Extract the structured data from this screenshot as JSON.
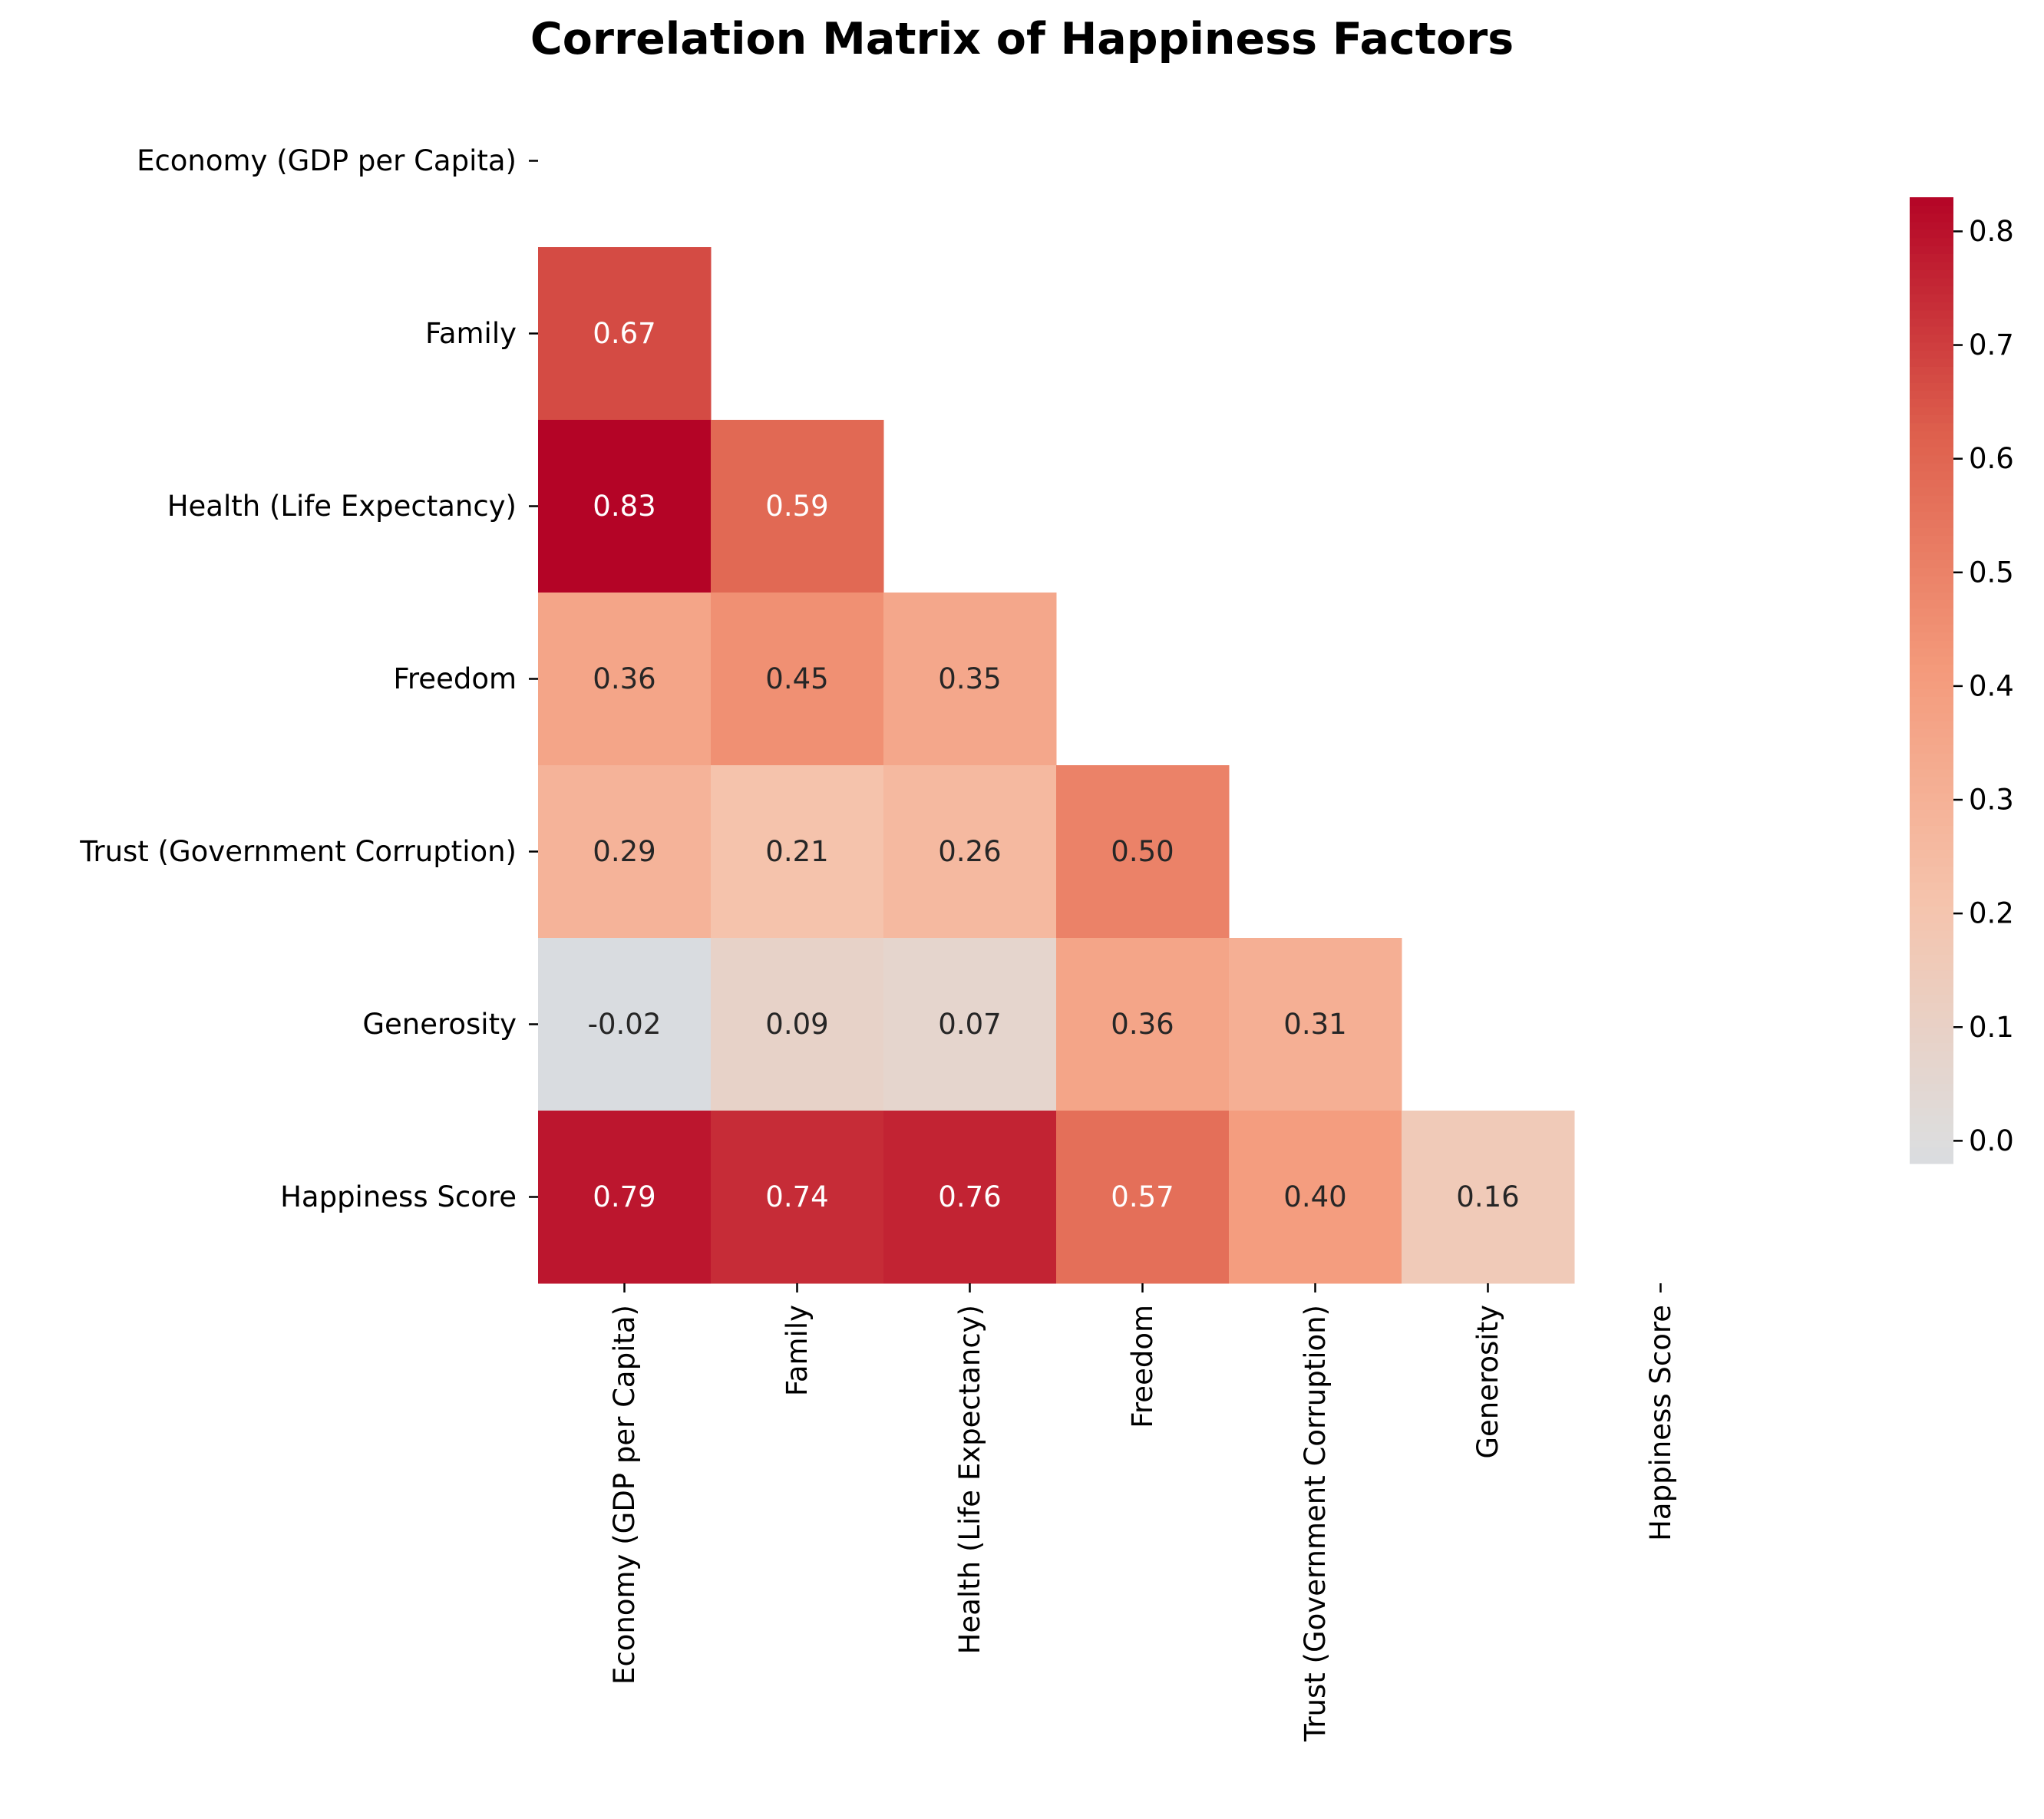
{
  "chart_data": {
    "type": "heatmap",
    "title": "Correlation Matrix of Happiness Factors",
    "variables": [
      "Economy (GDP per Capita)",
      "Family",
      "Health (Life Expectancy)",
      "Freedom",
      "Trust (Government Corruption)",
      "Generosity",
      "Happiness Score"
    ],
    "mask": "upper-triangle-including-diagonal",
    "cells": [
      {
        "row": "Family",
        "col": "Economy (GDP per Capita)",
        "value": 0.67,
        "label": "0.67"
      },
      {
        "row": "Health (Life Expectancy)",
        "col": "Economy (GDP per Capita)",
        "value": 0.83,
        "label": "0.83"
      },
      {
        "row": "Health (Life Expectancy)",
        "col": "Family",
        "value": 0.59,
        "label": "0.59"
      },
      {
        "row": "Freedom",
        "col": "Economy (GDP per Capita)",
        "value": 0.36,
        "label": "0.36"
      },
      {
        "row": "Freedom",
        "col": "Family",
        "value": 0.45,
        "label": "0.45"
      },
      {
        "row": "Freedom",
        "col": "Health (Life Expectancy)",
        "value": 0.35,
        "label": "0.35"
      },
      {
        "row": "Trust (Government Corruption)",
        "col": "Economy (GDP per Capita)",
        "value": 0.29,
        "label": "0.29"
      },
      {
        "row": "Trust (Government Corruption)",
        "col": "Family",
        "value": 0.21,
        "label": "0.21"
      },
      {
        "row": "Trust (Government Corruption)",
        "col": "Health (Life Expectancy)",
        "value": 0.26,
        "label": "0.26"
      },
      {
        "row": "Trust (Government Corruption)",
        "col": "Freedom",
        "value": 0.5,
        "label": "0.50"
      },
      {
        "row": "Generosity",
        "col": "Economy (GDP per Capita)",
        "value": -0.02,
        "label": "-0.02"
      },
      {
        "row": "Generosity",
        "col": "Family",
        "value": 0.09,
        "label": "0.09"
      },
      {
        "row": "Generosity",
        "col": "Health (Life Expectancy)",
        "value": 0.07,
        "label": "0.07"
      },
      {
        "row": "Generosity",
        "col": "Freedom",
        "value": 0.36,
        "label": "0.36"
      },
      {
        "row": "Generosity",
        "col": "Trust (Government Corruption)",
        "value": 0.31,
        "label": "0.31"
      },
      {
        "row": "Happiness Score",
        "col": "Economy (GDP per Capita)",
        "value": 0.79,
        "label": "0.79"
      },
      {
        "row": "Happiness Score",
        "col": "Family",
        "value": 0.74,
        "label": "0.74"
      },
      {
        "row": "Happiness Score",
        "col": "Health (Life Expectancy)",
        "value": 0.76,
        "label": "0.76"
      },
      {
        "row": "Happiness Score",
        "col": "Freedom",
        "value": 0.57,
        "label": "0.57"
      },
      {
        "row": "Happiness Score",
        "col": "Trust (Government Corruption)",
        "value": 0.4,
        "label": "0.40"
      },
      {
        "row": "Happiness Score",
        "col": "Generosity",
        "value": 0.16,
        "label": "0.16"
      }
    ],
    "colormap": "coolwarm",
    "center": 0,
    "colorbar": {
      "range": [
        -0.02,
        0.83
      ],
      "ticks": [
        0.0,
        0.1,
        0.2,
        0.3,
        0.4,
        0.5,
        0.6,
        0.7,
        0.8
      ],
      "tick_labels": [
        "0.0",
        "0.1",
        "0.2",
        "0.3",
        "0.4",
        "0.5",
        "0.6",
        "0.7",
        "0.8"
      ]
    },
    "grid": false,
    "legend": "colorbar-right"
  }
}
